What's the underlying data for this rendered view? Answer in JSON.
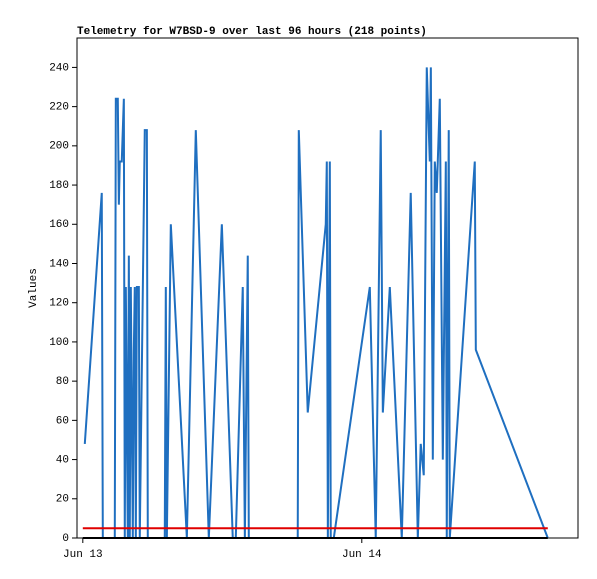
{
  "chart_data": {
    "type": "line",
    "title": "Telemetry for W7BSD-9 over last 96 hours (218 points)",
    "y_label": "Values",
    "xlim": [
      -0.5,
      42.6
    ],
    "xticks": [
      {
        "value": 0,
        "label": "Jun 13"
      },
      {
        "value": 24,
        "label": "Jun 14"
      }
    ],
    "ylim": [
      0,
      255
    ],
    "yticks": [
      0,
      20,
      40,
      60,
      80,
      100,
      120,
      140,
      160,
      180,
      200,
      220,
      240
    ],
    "series": [
      {
        "color": "#1f6fc0",
        "x": [
          0.17,
          1.63,
          1.72,
          2.75,
          2.84,
          3.01,
          3.1,
          3.18,
          3.35,
          3.53,
          3.61,
          3.7,
          3.87,
          3.96,
          4.04,
          4.13,
          4.3,
          4.39,
          4.47,
          4.56,
          4.65,
          4.82,
          4.9,
          5.33,
          5.51,
          5.59,
          7.05,
          7.14,
          7.23,
          7.57,
          8.95,
          9.72,
          10.84,
          11.96,
          12.9,
          13.16,
          13.76,
          13.94,
          14.19,
          14.28,
          18.49,
          18.58,
          19.35,
          20.9,
          20.99,
          21.08,
          21.25,
          21.33,
          21.59,
          24.69,
          25.2,
          25.63,
          25.81,
          26.41,
          27.44,
          28.21,
          28.82,
          29.07,
          29.33,
          29.59,
          29.85,
          29.94,
          30.11,
          30.28,
          30.45,
          30.71,
          30.97,
          31.23,
          31.31,
          31.48,
          31.57,
          33.72,
          33.81,
          40.0
        ],
        "values": [
          48,
          176,
          0,
          0,
          224,
          224,
          170,
          192,
          192,
          224,
          0,
          128,
          0,
          144,
          0,
          128,
          0,
          96,
          128,
          0,
          128,
          128,
          0,
          208,
          208,
          0,
          0,
          128,
          0,
          160,
          0,
          208,
          0,
          160,
          0,
          0,
          128,
          0,
          144,
          0,
          0,
          208,
          64,
          160,
          192,
          0,
          192,
          0,
          0,
          128,
          0,
          208,
          64,
          128,
          0,
          176,
          0,
          48,
          32,
          240,
          192,
          240,
          40,
          192,
          176,
          224,
          40,
          192,
          0,
          208,
          0,
          192,
          96,
          0
        ]
      },
      {
        "color": "#e00000",
        "x": [
          0,
          40
        ],
        "values": [
          5,
          5
        ]
      },
      {
        "color": "#000000",
        "x": [
          0,
          40
        ],
        "values": [
          0,
          0
        ]
      }
    ]
  }
}
